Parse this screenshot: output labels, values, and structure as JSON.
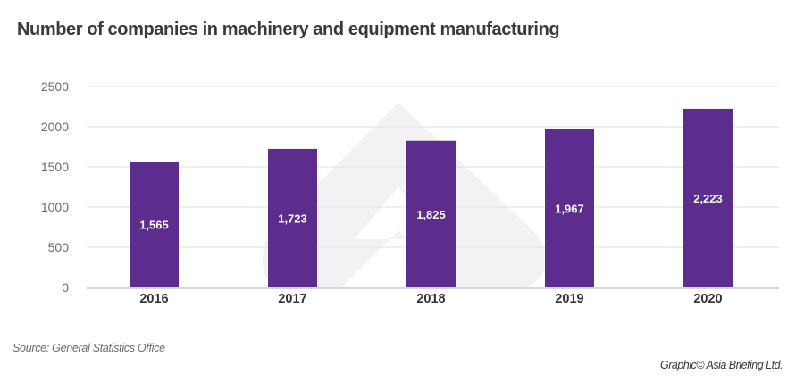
{
  "title": "Number of companies in machinery and equipment manufacturing",
  "source": "Source: General Statistics Office",
  "credit": "Graphic© Asia Briefing Ltd.",
  "colors": {
    "bar": "#5c2d8c",
    "grid": "#e6e6e6",
    "axis": "#c8c8c8",
    "watermark": "#f2f2f4"
  },
  "chart_data": {
    "type": "bar",
    "title": "Number of companies in machinery and equipment manufacturing",
    "xlabel": "",
    "ylabel": "",
    "categories": [
      "2016",
      "2017",
      "2018",
      "2019",
      "2020"
    ],
    "values": [
      1565,
      1723,
      1825,
      1967,
      2223
    ],
    "data_labels": [
      "1,565",
      "1,723",
      "1,825",
      "1,967",
      "2,223"
    ],
    "ylim": [
      0,
      2500
    ],
    "yticks": [
      0,
      500,
      1000,
      1500,
      2000,
      2500
    ],
    "grid": true,
    "legend": "none"
  }
}
